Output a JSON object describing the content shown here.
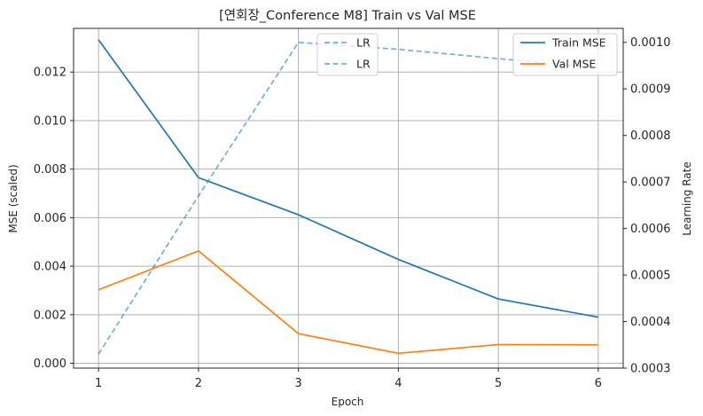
{
  "chart_data": {
    "type": "line",
    "title": "[연회장_Conference M8] Train vs Val MSE",
    "xlabel": "Epoch",
    "ylabel_left": "MSE (scaled)",
    "ylabel_right": "Learning Rate",
    "x": [
      1,
      2,
      3,
      4,
      5,
      6
    ],
    "xlim": [
      0.75,
      6.25
    ],
    "ylim_left": [
      -0.0002,
      0.0138
    ],
    "ylim_right": [
      0.0003,
      0.00103
    ],
    "x_ticks": [
      "1",
      "2",
      "3",
      "4",
      "5",
      "6"
    ],
    "y_ticks_left": [
      "0.000",
      "0.002",
      "0.004",
      "0.006",
      "0.008",
      "0.010",
      "0.012"
    ],
    "y_ticks_right": [
      "0.0003",
      "0.0004",
      "0.0005",
      "0.0006",
      "0.0007",
      "0.0008",
      "0.0009",
      "0.0010"
    ],
    "grid": true,
    "series": [
      {
        "name": "Train MSE",
        "axis": "left",
        "style": "solid",
        "color": "#1f77b4",
        "values": [
          0.01333,
          0.00765,
          0.00612,
          0.00428,
          0.00265,
          0.0019
        ]
      },
      {
        "name": "Val MSE",
        "axis": "left",
        "style": "solid",
        "color": "#ff7f0e",
        "values": [
          0.00303,
          0.00463,
          0.00122,
          0.00041,
          0.00077,
          0.00076
        ]
      },
      {
        "name": "LR",
        "axis": "right",
        "style": "dashed",
        "color": "#1f77b4",
        "values": [
          0.00033,
          0.00067,
          0.001,
          0.000985,
          0.000965,
          0.000945
        ]
      }
    ],
    "legend_right": {
      "position": "upper-right",
      "entries": [
        "Train MSE",
        "Val MSE"
      ]
    },
    "legend_lr": {
      "position": "upper-center",
      "entries": [
        "LR",
        "LR"
      ]
    }
  }
}
